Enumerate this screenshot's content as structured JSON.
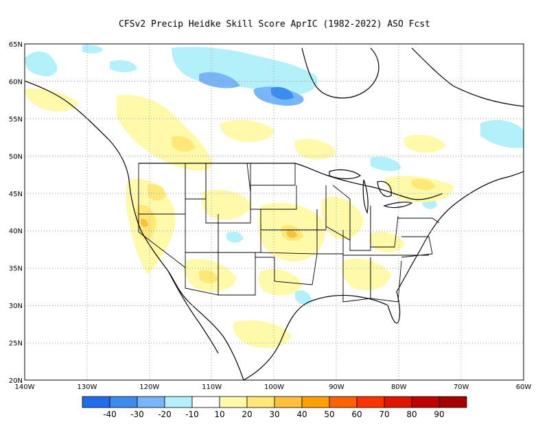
{
  "title": "CFSv2 Precip Heidke Skill Score AprIC (1982-2022) ASO Fcst",
  "map": {
    "lat_labels": [
      "65N",
      "60N",
      "55N",
      "50N",
      "45N",
      "40N",
      "35N",
      "30N",
      "25N",
      "20N"
    ],
    "lon_labels": [
      "140W",
      "130W",
      "120W",
      "110W",
      "100W",
      "90W",
      "80W",
      "70W",
      "60W"
    ],
    "lat_range": [
      20,
      65
    ],
    "lon_range": [
      -140,
      -60
    ],
    "grid": "dotted"
  },
  "colorbar": {
    "labels": [
      "-40",
      "-30",
      "-20",
      "-10",
      "10",
      "20",
      "30",
      "40",
      "50",
      "60",
      "70",
      "80",
      "90"
    ],
    "colors": [
      "#1e6eeb",
      "#3c8cf0",
      "#78b4f8",
      "#b4f0fa",
      "#ffffff",
      "#fffaaa",
      "#ffe878",
      "#ffc03c",
      "#ffa000",
      "#ff6000",
      "#ff3200",
      "#e11400",
      "#c00000",
      "#a50000"
    ]
  },
  "palette": {
    "pos_light": "#fffaaa",
    "pos_mid": "#ffe878",
    "pos_strong": "#ffc03c",
    "neg_light": "#b4f0fa",
    "neg_mid": "#78b4f8",
    "neg_strong": "#3c8cf0"
  }
}
